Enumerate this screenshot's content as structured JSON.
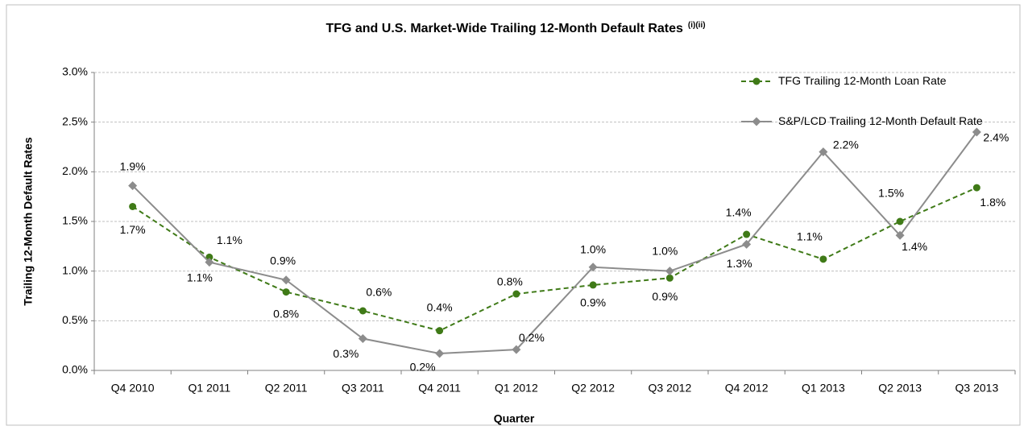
{
  "chart_data": {
    "type": "line",
    "title": "TFG and U.S. Market-Wide Trailing 12-Month Default Rates",
    "title_note": "(i)(ii)",
    "x_label": "Quarter",
    "y_label": "Trailing 12-Month Default Rates",
    "categories": [
      "Q4 2010",
      "Q1 2011",
      "Q2 2011",
      "Q3 2011",
      "Q4 2011",
      "Q1 2012",
      "Q2 2012",
      "Q3 2012",
      "Q4 2012",
      "Q1 2013",
      "Q2 2013",
      "Q3 2013"
    ],
    "series": [
      {
        "name": "TFG Trailing 12-Month Loan Rate",
        "color": "#3f7a17",
        "dashed": true,
        "marker": "circle",
        "values": [
          1.65,
          1.14,
          0.79,
          0.6,
          0.4,
          0.77,
          0.86,
          0.93,
          1.37,
          1.12,
          1.5,
          1.84
        ],
        "value_labels": [
          "1.7%",
          "1.1%",
          "0.8%",
          "0.6%",
          "0.4%",
          "0.8%",
          "0.9%",
          "0.9%",
          "1.4%",
          "1.1%",
          "1.5%",
          "1.8%"
        ]
      },
      {
        "name": "S&P/LCD Trailing 12-Month Default Rate",
        "color": "#8c8c8c",
        "dashed": false,
        "marker": "diamond",
        "values": [
          1.86,
          1.09,
          0.91,
          0.32,
          0.17,
          0.21,
          1.04,
          1.0,
          1.27,
          2.2,
          1.36,
          2.4
        ],
        "value_labels": [
          "1.9%",
          "1.1%",
          "0.9%",
          "0.3%",
          "0.2%",
          "0.2%",
          "1.0%",
          "1.0%",
          "1.3%",
          "2.2%",
          "1.4%",
          "2.4%"
        ]
      }
    ],
    "ylim": [
      0,
      3
    ],
    "yticks": [
      {
        "value": 0,
        "label": "0.0%"
      },
      {
        "value": 0.5,
        "label": "0.5%"
      },
      {
        "value": 1,
        "label": "1.0%"
      },
      {
        "value": 1.5,
        "label": "1.5%"
      },
      {
        "value": 2,
        "label": "2.0%"
      },
      {
        "value": 2.5,
        "label": "2.5%"
      },
      {
        "value": 3,
        "label": "3.0%"
      }
    ],
    "grid": true,
    "legend": "top-right"
  }
}
